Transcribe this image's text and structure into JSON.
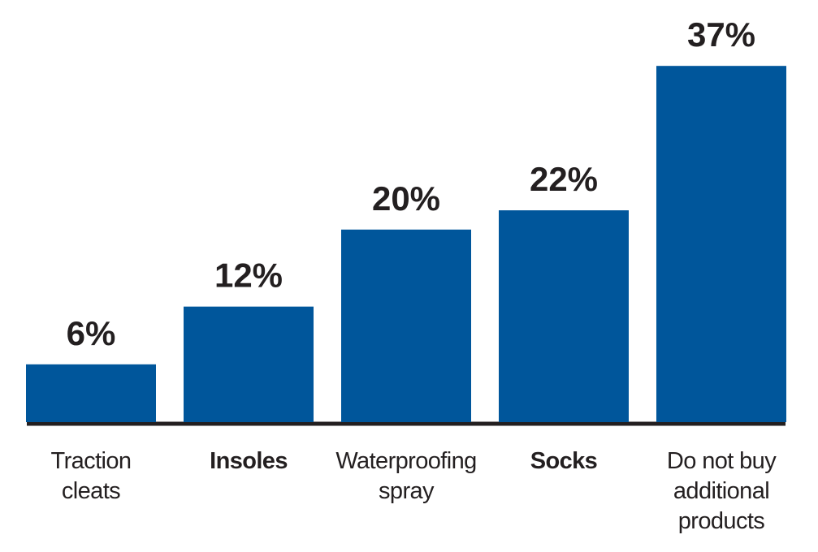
{
  "chart_data": {
    "type": "bar",
    "categories": [
      "Traction cleats",
      "Insoles",
      "Waterproofing spray",
      "Socks",
      "Do not buy additional products"
    ],
    "values": [
      6,
      12,
      20,
      22,
      37
    ],
    "value_labels": [
      "6%",
      "12%",
      "20%",
      "22%",
      "37%"
    ],
    "color": "#00569b"
  }
}
